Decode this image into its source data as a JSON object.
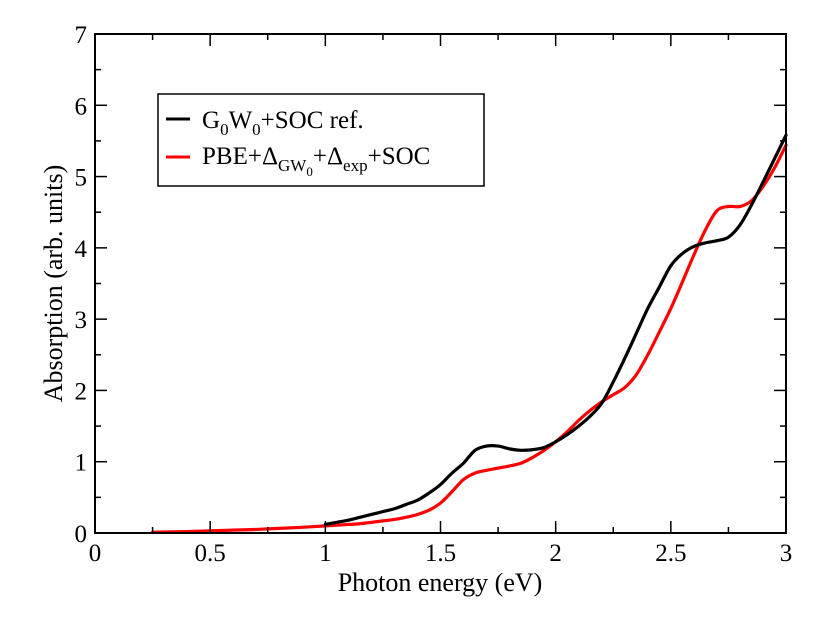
{
  "chart_data": {
    "type": "line",
    "title": "",
    "xlabel": "Photon energy (eV)",
    "ylabel": "Absorption (arb. units)",
    "xlim": [
      0,
      3
    ],
    "ylim": [
      0,
      7
    ],
    "xticks": [
      0,
      0.5,
      1,
      1.5,
      2,
      2.5,
      3
    ],
    "xtick_labels": [
      "0",
      "0.5",
      "1",
      "1.5",
      "2",
      "2.5",
      "3"
    ],
    "yticks": [
      0,
      1,
      2,
      3,
      4,
      5,
      6,
      7
    ],
    "ytick_labels": [
      "0",
      "1",
      "2",
      "3",
      "4",
      "5",
      "6",
      "7"
    ],
    "grid": false,
    "legend_position": "top-left",
    "series": [
      {
        "name": "G0W0+SOC ref.",
        "legend": {
          "base1": "G",
          "sub1": "0",
          "base2": "W",
          "sub2": "0",
          "rest": "+SOC ref."
        },
        "color": "#000000",
        "x": [
          1.0,
          1.05,
          1.1,
          1.15,
          1.2,
          1.25,
          1.3,
          1.35,
          1.4,
          1.45,
          1.5,
          1.55,
          1.6,
          1.65,
          1.7,
          1.75,
          1.8,
          1.85,
          1.9,
          1.95,
          2.0,
          2.05,
          2.1,
          2.15,
          2.2,
          2.25,
          2.3,
          2.35,
          2.4,
          2.45,
          2.5,
          2.55,
          2.6,
          2.65,
          2.7,
          2.75,
          2.8,
          2.85,
          2.9,
          2.95,
          3.0
        ],
        "y": [
          0.12,
          0.15,
          0.18,
          0.22,
          0.26,
          0.3,
          0.34,
          0.4,
          0.46,
          0.56,
          0.68,
          0.84,
          0.98,
          1.16,
          1.22,
          1.22,
          1.18,
          1.16,
          1.17,
          1.2,
          1.28,
          1.38,
          1.5,
          1.64,
          1.82,
          2.12,
          2.45,
          2.8,
          3.15,
          3.45,
          3.75,
          3.92,
          4.02,
          4.07,
          4.1,
          4.15,
          4.32,
          4.6,
          4.92,
          5.25,
          5.58
        ]
      },
      {
        "name": "PBE+ΔGW0+Δexp+SOC",
        "legend": {
          "base1": "PBE+Δ",
          "sub1": "GW",
          "subsub1": "0",
          "base2": "+Δ",
          "sub2": "exp",
          "rest": "+SOC"
        },
        "color": "#ff0000",
        "x": [
          0.25,
          0.3,
          0.4,
          0.5,
          0.6,
          0.7,
          0.8,
          0.9,
          1.0,
          1.05,
          1.1,
          1.15,
          1.2,
          1.25,
          1.3,
          1.35,
          1.4,
          1.45,
          1.5,
          1.55,
          1.6,
          1.65,
          1.7,
          1.75,
          1.8,
          1.85,
          1.9,
          1.95,
          2.0,
          2.05,
          2.1,
          2.15,
          2.2,
          2.25,
          2.3,
          2.35,
          2.4,
          2.45,
          2.5,
          2.55,
          2.6,
          2.65,
          2.7,
          2.75,
          2.8,
          2.85,
          2.9,
          2.95,
          3.0
        ],
        "y": [
          0.01,
          0.015,
          0.02,
          0.03,
          0.04,
          0.05,
          0.065,
          0.08,
          0.1,
          0.11,
          0.12,
          0.13,
          0.15,
          0.17,
          0.19,
          0.22,
          0.26,
          0.32,
          0.42,
          0.58,
          0.75,
          0.84,
          0.88,
          0.91,
          0.94,
          0.98,
          1.06,
          1.16,
          1.28,
          1.42,
          1.58,
          1.72,
          1.84,
          1.94,
          2.04,
          2.22,
          2.5,
          2.82,
          3.15,
          3.52,
          3.9,
          4.25,
          4.52,
          4.58,
          4.58,
          4.66,
          4.86,
          5.12,
          5.44
        ]
      }
    ]
  }
}
